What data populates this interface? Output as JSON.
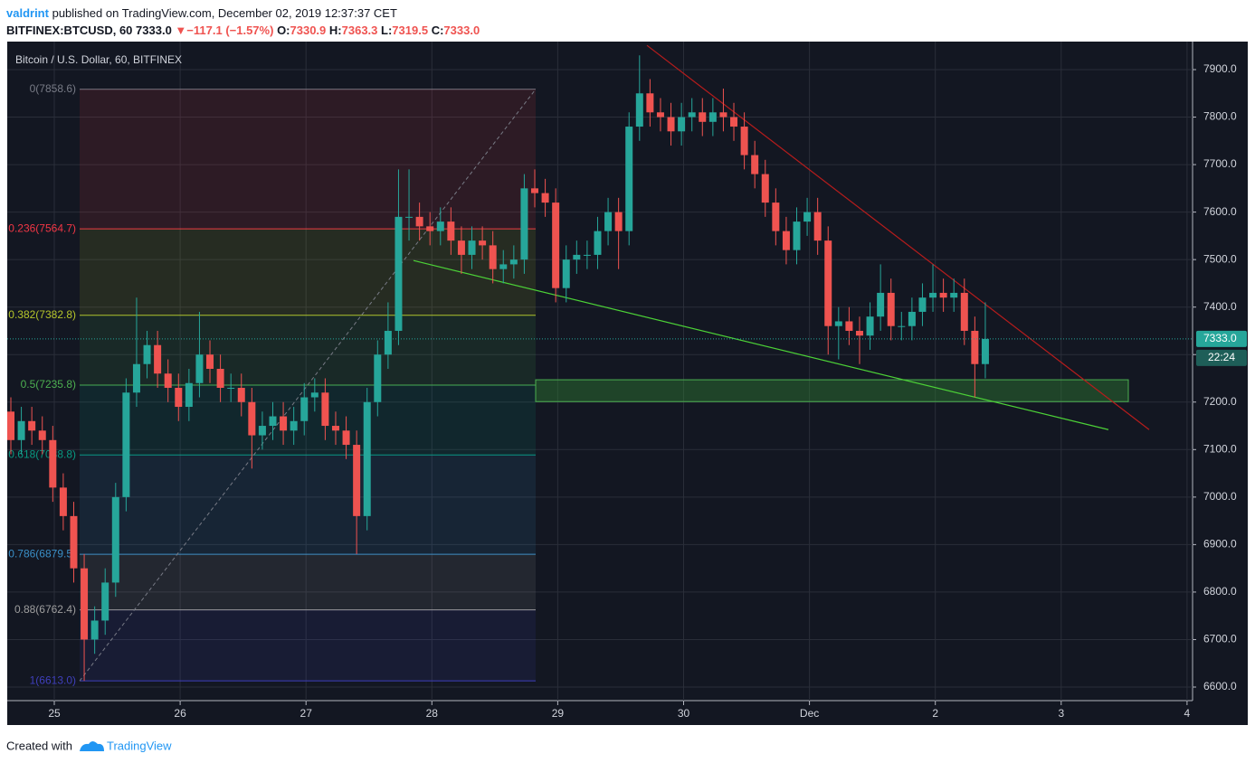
{
  "header": {
    "author": "valdrint",
    "published": "published on TradingView.com, December 02, 2019 12:37:37 CET",
    "symbol": "BITFINEX:BTCUSD, 60",
    "last": "7333.0",
    "arrow": "▼",
    "change": "−117.1 (−1.57%)",
    "o_label": "O:",
    "o": "7330.9",
    "h_label": "H:",
    "h": "7363.3",
    "l_label": "L:",
    "l": "7319.5",
    "c_label": "C:",
    "c": "7333.0"
  },
  "chart_data": {
    "type": "candlestick",
    "title": "Bitcoin / U.S. Dollar, 60, BITFINEX",
    "up_color": "#26a69a",
    "down_color": "#ef5350",
    "categories": [
      "25",
      "26",
      "27",
      "28",
      "29",
      "30",
      "Dec",
      "2",
      "3",
      "4"
    ],
    "open": [
      7180,
      7120,
      7160,
      7140,
      7120,
      7020,
      6960,
      6850,
      6700,
      6740,
      6820,
      7000,
      7220,
      7280,
      7320,
      7260,
      7230,
      7190,
      7240,
      7300,
      7270,
      7230,
      7230,
      7200,
      7130,
      7150,
      7170,
      7140,
      7160,
      7210,
      7220,
      7150,
      7140,
      7110,
      6960,
      7200,
      7300,
      7350,
      7590,
      7590,
      7570,
      7560,
      7580,
      7540,
      7510,
      7540,
      7530,
      7480,
      7490,
      7500,
      7650,
      7640,
      7620,
      7440,
      7500,
      7510,
      7510,
      7560,
      7600,
      7560,
      7780,
      7850,
      7810,
      7800,
      7770,
      7800,
      7810,
      7790,
      7810,
      7800,
      7780,
      7720,
      7680,
      7620,
      7560,
      7520,
      7580,
      7600,
      7540,
      7360,
      7370,
      7350,
      7340,
      7380,
      7430,
      7360,
      7360,
      7390,
      7420,
      7430,
      7420,
      7430,
      7350,
      7280
    ],
    "high": [
      7210,
      7190,
      7190,
      7170,
      7150,
      7050,
      6990,
      6880,
      6770,
      6850,
      7030,
      7250,
      7420,
      7350,
      7350,
      7290,
      7260,
      7270,
      7390,
      7330,
      7300,
      7260,
      7260,
      7230,
      7180,
      7200,
      7200,
      7190,
      7240,
      7250,
      7250,
      7180,
      7170,
      7140,
      7230,
      7330,
      7410,
      7690,
      7690,
      7620,
      7600,
      7610,
      7610,
      7570,
      7570,
      7570,
      7560,
      7520,
      7530,
      7680,
      7690,
      7670,
      7650,
      7530,
      7540,
      7540,
      7590,
      7630,
      7630,
      7810,
      7930,
      7880,
      7840,
      7830,
      7830,
      7840,
      7840,
      7840,
      7860,
      7830,
      7810,
      7750,
      7710,
      7650,
      7590,
      7610,
      7630,
      7630,
      7570,
      7400,
      7400,
      7380,
      7410,
      7490,
      7460,
      7390,
      7420,
      7450,
      7490,
      7460,
      7460,
      7460,
      7380,
      7410
    ],
    "low": [
      7090,
      7090,
      7110,
      7090,
      6990,
      6930,
      6820,
      6613,
      6670,
      6710,
      6790,
      6970,
      7190,
      7250,
      7230,
      7200,
      7160,
      7160,
      7210,
      7240,
      7200,
      7200,
      7170,
      7060,
      7100,
      7120,
      7110,
      7110,
      7130,
      7180,
      7120,
      7110,
      7080,
      6880,
      6930,
      7170,
      7270,
      7320,
      7540,
      7540,
      7530,
      7530,
      7510,
      7470,
      7480,
      7500,
      7450,
      7450,
      7460,
      7470,
      7610,
      7590,
      7410,
      7410,
      7470,
      7480,
      7480,
      7530,
      7480,
      7530,
      7750,
      7780,
      7770,
      7740,
      7740,
      7770,
      7760,
      7760,
      7770,
      7750,
      7690,
      7650,
      7590,
      7530,
      7490,
      7490,
      7550,
      7510,
      7300,
      7290,
      7320,
      7280,
      7310,
      7350,
      7330,
      7330,
      7330,
      7360,
      7390,
      7390,
      7390,
      7320,
      7210,
      7250
    ],
    "close": [
      7120,
      7160,
      7140,
      7120,
      7020,
      6960,
      6850,
      6700,
      6740,
      6820,
      7000,
      7220,
      7280,
      7320,
      7260,
      7230,
      7190,
      7240,
      7300,
      7270,
      7230,
      7230,
      7200,
      7130,
      7150,
      7170,
      7140,
      7160,
      7210,
      7220,
      7150,
      7140,
      7110,
      6960,
      7200,
      7300,
      7350,
      7590,
      7590,
      7570,
      7560,
      7580,
      7540,
      7510,
      7540,
      7530,
      7480,
      7490,
      7500,
      7650,
      7640,
      7620,
      7440,
      7500,
      7510,
      7510,
      7560,
      7600,
      7560,
      7780,
      7850,
      7810,
      7800,
      7770,
      7800,
      7810,
      7790,
      7810,
      7800,
      7780,
      7720,
      7680,
      7620,
      7560,
      7520,
      7580,
      7600,
      7540,
      7360,
      7370,
      7350,
      7340,
      7380,
      7430,
      7360,
      7360,
      7390,
      7420,
      7430,
      7420,
      7430,
      7350,
      7280,
      7333
    ],
    "ylim": [
      6600,
      7900
    ],
    "yticks": [
      {
        "value": 6600,
        "label": "6600.0"
      },
      {
        "value": 6700,
        "label": "6700.0"
      },
      {
        "value": 6800,
        "label": "6800.0"
      },
      {
        "value": 6900,
        "label": "6900.0"
      },
      {
        "value": 7000,
        "label": "7000.0"
      },
      {
        "value": 7100,
        "label": "7100.0"
      },
      {
        "value": 7200,
        "label": "7200.0"
      },
      {
        "value": 7300,
        "label": "7300.0"
      },
      {
        "value": 7400,
        "label": "7400.0"
      },
      {
        "value": 7500,
        "label": "7500.0"
      },
      {
        "value": 7600,
        "label": "7600.0"
      },
      {
        "value": 7700,
        "label": "7700.0"
      },
      {
        "value": 7800,
        "label": "7800.0"
      },
      {
        "value": 7900,
        "label": "7900.0"
      }
    ],
    "grid": true,
    "fib": [
      {
        "value": 7858.6,
        "label": "0(7858.6)",
        "color": "#787b86"
      },
      {
        "value": 7564.7,
        "label": "0.236(7564.7)",
        "color": "#f23645"
      },
      {
        "value": 7382.8,
        "label": "0.382(7382.8)",
        "color": "#b5c52a"
      },
      {
        "value": 7235.8,
        "label": "0.5(7235.8)",
        "color": "#4caf50"
      },
      {
        "value": 7088.8,
        "label": "0.618(7088.8)",
        "color": "#089981"
      },
      {
        "value": 6879.5,
        "label": "0.786(6879.5)",
        "color": "#3a8fc7"
      },
      {
        "value": 6762.4,
        "label": "0.88(6762.4)",
        "color": "#9e9e9e"
      },
      {
        "value": 6613.0,
        "label": "1(6613.0)",
        "color": "#3f3fbb"
      }
    ],
    "trendlines": [
      {
        "start": 7951,
        "end": 7142,
        "color": "#b71c1c"
      },
      {
        "start": 7498,
        "end": 7142,
        "color": "#4cd137"
      }
    ],
    "zone": {
      "top": 7247,
      "bottom": 7201,
      "color": "#2e7d32"
    },
    "last_price": {
      "value": 7333,
      "label": "7333.0",
      "countdown": "22:24"
    }
  },
  "footer": {
    "created": "Created with",
    "brand": "TradingView"
  }
}
